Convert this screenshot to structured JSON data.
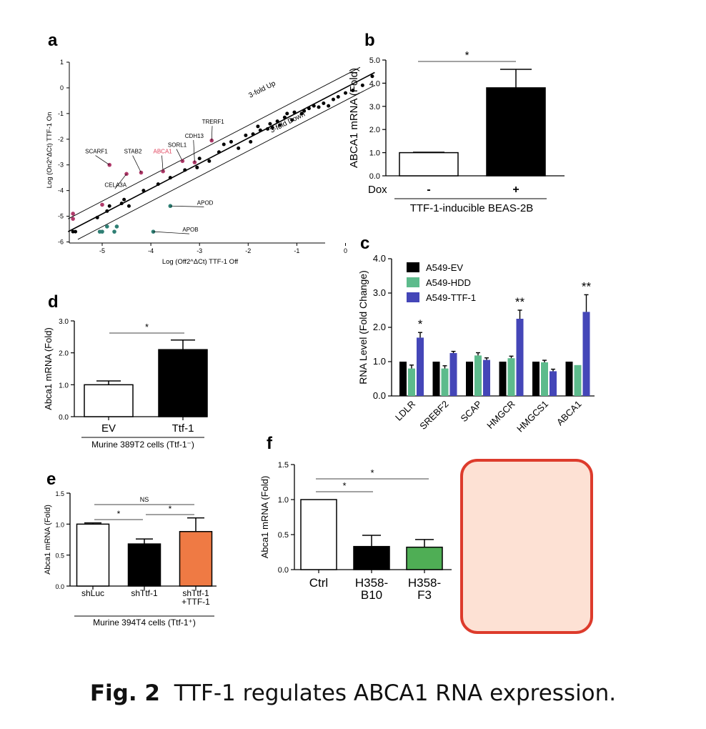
{
  "caption": {
    "label": "Fig. 2",
    "text": "TTF-1 regulates ABCA1 RNA expression."
  },
  "colors": {
    "magenta": "#b03a6a",
    "teal": "#2f7f74",
    "black": "#000000",
    "green_c": "#5dbb8c",
    "blue_c": "#4446b8",
    "orange_e": "#ef7a44",
    "green_f": "#4fae55",
    "red_label": "#e0405a",
    "placeholder_fill": "#fde1d4",
    "placeholder_border": "#dd3b2c"
  },
  "chart_data": [
    {
      "panel": "a",
      "type": "scatter",
      "xlabel": "Log (Off2^ΔCt) TTF-1 Off",
      "ylabel": "Log (On2^ΔCt) TTF-1 On",
      "xlim": [
        -5.9,
        0.6
      ],
      "ylim": [
        -6,
        1
      ],
      "xticks": [
        "-5",
        "-4",
        "-3",
        "-2",
        "-1",
        "0"
      ],
      "yticks": [
        "1",
        "0",
        "-1",
        "-2",
        "-3",
        "-4",
        "-5",
        "-6"
      ],
      "lines": [
        {
          "label": "3-fold Up",
          "from": [
            -5.7,
            -5.1
          ],
          "to": [
            0.3,
            0.8
          ]
        },
        {
          "label": "",
          "from": [
            -5.7,
            -5.6
          ],
          "to": [
            0.6,
            0.6
          ]
        },
        {
          "label": "3-fold Down",
          "from": [
            -5.5,
            -5.9
          ],
          "to": [
            0.6,
            0.1
          ]
        }
      ],
      "annotations": [
        {
          "text": "SCARF1",
          "color": "#000000",
          "x": -5.35,
          "y": -2.55,
          "point": [
            -4.85,
            -3.0
          ]
        },
        {
          "text": "STAB2",
          "color": "#000000",
          "x": -4.55,
          "y": -2.55,
          "point": [
            -4.2,
            -3.3
          ]
        },
        {
          "text": "ABCA1",
          "color": "#e0405a",
          "x": -3.95,
          "y": -2.55,
          "point": [
            -3.75,
            -3.25
          ]
        },
        {
          "text": "SORL1",
          "color": "#000000",
          "x": -3.65,
          "y": -2.3,
          "point": [
            -3.35,
            -2.85
          ]
        },
        {
          "text": "CDH13",
          "color": "#000000",
          "x": -3.3,
          "y": -1.95,
          "point": [
            -3.1,
            -2.9
          ]
        },
        {
          "text": "TRERF1",
          "color": "#000000",
          "x": -2.95,
          "y": -1.4,
          "point": [
            -2.75,
            -2.05
          ]
        },
        {
          "text": "CELA3A",
          "color": "#000000",
          "x": -4.95,
          "y": -3.85,
          "point": [
            -4.5,
            -3.35
          ]
        },
        {
          "text": "APOD",
          "color": "#000000",
          "x": -3.05,
          "y": -4.55,
          "point": [
            -3.6,
            -4.6
          ]
        },
        {
          "text": "APOB",
          "color": "#000000",
          "x": -3.35,
          "y": -5.6,
          "point": [
            -3.95,
            -5.6
          ]
        }
      ],
      "points_up": [
        [
          -5.6,
          -5.1
        ],
        [
          -5.6,
          -4.9
        ],
        [
          -5.0,
          -4.55
        ],
        [
          -4.85,
          -3.0
        ],
        [
          -4.5,
          -3.35
        ],
        [
          -4.2,
          -3.3
        ],
        [
          -3.75,
          -3.25
        ],
        [
          -3.35,
          -2.85
        ],
        [
          -3.1,
          -2.9
        ],
        [
          -2.75,
          -2.05
        ]
      ],
      "points_down": [
        [
          -5.0,
          -5.6
        ],
        [
          -5.05,
          -5.6
        ],
        [
          -4.9,
          -5.4
        ],
        [
          -4.7,
          -5.4
        ],
        [
          -4.75,
          -5.6
        ],
        [
          -3.95,
          -5.6
        ],
        [
          -3.6,
          -4.6
        ]
      ],
      "points_mid": [
        [
          -5.6,
          -5.6
        ],
        [
          -5.55,
          -5.6
        ],
        [
          -5.1,
          -5.05
        ],
        [
          -4.9,
          -4.8
        ],
        [
          -4.85,
          -4.6
        ],
        [
          -4.6,
          -4.5
        ],
        [
          -4.55,
          -4.35
        ],
        [
          -4.45,
          -4.6
        ],
        [
          -4.15,
          -4.0
        ],
        [
          -3.85,
          -3.75
        ],
        [
          -3.6,
          -3.5
        ],
        [
          -3.3,
          -3.2
        ],
        [
          -3.05,
          -3.1
        ],
        [
          -3.0,
          -2.75
        ],
        [
          -2.8,
          -2.85
        ],
        [
          -2.6,
          -2.5
        ],
        [
          -2.5,
          -2.2
        ],
        [
          -2.35,
          -2.1
        ],
        [
          -2.2,
          -2.35
        ],
        [
          -2.05,
          -1.85
        ],
        [
          -1.95,
          -2.1
        ],
        [
          -1.9,
          -1.8
        ],
        [
          -1.8,
          -1.5
        ],
        [
          -1.75,
          -1.65
        ],
        [
          -1.6,
          -1.6
        ],
        [
          -1.55,
          -1.4
        ],
        [
          -1.5,
          -1.55
        ],
        [
          -1.4,
          -1.3
        ],
        [
          -1.35,
          -1.45
        ],
        [
          -1.25,
          -1.15
        ],
        [
          -1.2,
          -1.0
        ],
        [
          -1.1,
          -1.25
        ],
        [
          -1.05,
          -0.95
        ],
        [
          -0.9,
          -1.0
        ],
        [
          -0.85,
          -0.9
        ],
        [
          -0.75,
          -0.8
        ],
        [
          -0.65,
          -0.7
        ],
        [
          -0.55,
          -0.75
        ],
        [
          -0.45,
          -0.6
        ],
        [
          -0.35,
          -0.7
        ],
        [
          -0.25,
          -0.45
        ],
        [
          -0.15,
          -0.35
        ],
        [
          0.0,
          -0.2
        ],
        [
          0.15,
          -0.1
        ],
        [
          0.35,
          0.1
        ],
        [
          0.55,
          0.45
        ]
      ]
    },
    {
      "panel": "b",
      "type": "bar",
      "ylabel": "ABCA1 mRNA (Fold)",
      "ylim": [
        0,
        5
      ],
      "yticks": [
        "0.0",
        "1.0",
        "2.0",
        "3.0",
        "4.0",
        "5.0"
      ],
      "factor_label": "Dox",
      "categories": [
        "-",
        "+"
      ],
      "values": [
        1.0,
        3.8
      ],
      "errors": [
        0.02,
        0.8
      ],
      "bar_colors": [
        "#ffffff",
        "#000000"
      ],
      "group_label": "TTF-1-inducible BEAS-2B",
      "significance": [
        {
          "from": 0,
          "to": 1,
          "label": "*"
        }
      ]
    },
    {
      "panel": "c",
      "type": "bar",
      "ylabel": "RNA Level (Fold Change)",
      "ylim": [
        0,
        4
      ],
      "yticks": [
        "0.0",
        "1.0",
        "2.0",
        "3.0",
        "4.0"
      ],
      "categories": [
        "LDLR",
        "SREBF2",
        "SCAP",
        "HMGCR",
        "HMGCS1",
        "ABCA1"
      ],
      "series": [
        {
          "name": "A549-EV",
          "color": "#000000",
          "values": [
            1.0,
            1.0,
            1.0,
            1.0,
            1.0,
            1.0
          ],
          "errors": [
            0.02,
            0.02,
            0.02,
            0.02,
            0.02,
            0.02
          ]
        },
        {
          "name": "A549-HDD",
          "color": "#5dbb8c",
          "values": [
            0.8,
            0.8,
            1.18,
            1.1,
            0.98,
            0.9
          ],
          "errors": [
            0.1,
            0.08,
            0.08,
            0.06,
            0.06,
            0.03
          ]
        },
        {
          "name": "A549-TTF-1",
          "color": "#4446b8",
          "values": [
            1.7,
            1.25,
            1.05,
            2.25,
            0.72,
            2.45
          ],
          "errors": [
            0.15,
            0.05,
            0.06,
            0.25,
            0.06,
            0.5
          ]
        }
      ],
      "significance_labels": [
        "*",
        "",
        "",
        "**",
        "",
        "**"
      ]
    },
    {
      "panel": "d",
      "type": "bar",
      "ylabel": "Abca1 mRNA (Fold)",
      "ylim": [
        0,
        3
      ],
      "yticks": [
        "0.0",
        "1.0",
        "2.0",
        "3.0"
      ],
      "categories": [
        "EV",
        "Ttf-1"
      ],
      "values": [
        1.0,
        2.1
      ],
      "errors": [
        0.12,
        0.3
      ],
      "bar_colors": [
        "#ffffff",
        "#000000"
      ],
      "group_label": "Murine 389T2 cells (Ttf-1⁻)",
      "significance": [
        {
          "from": 0,
          "to": 1,
          "label": "*"
        }
      ]
    },
    {
      "panel": "e",
      "type": "bar",
      "ylabel": "Abca1 mRNA (Fold)",
      "ylim": [
        0,
        1.5
      ],
      "yticks": [
        "0.0",
        "0.5",
        "1.0",
        "1.5"
      ],
      "categories": [
        "shLuc",
        "shTtf-1",
        "shTtf-1\n+TTF-1"
      ],
      "values": [
        1.0,
        0.68,
        0.88
      ],
      "errors": [
        0.02,
        0.08,
        0.22
      ],
      "bar_colors": [
        "#ffffff",
        "#000000",
        "#ef7a44"
      ],
      "group_label": "Murine 394T4 cells (Ttf-1⁺)",
      "significance": [
        {
          "from": 0,
          "to": 2,
          "label": "NS"
        },
        {
          "from": 0,
          "to": 1,
          "label": "*"
        },
        {
          "from": 1,
          "to": 2,
          "label": "*"
        }
      ]
    },
    {
      "panel": "f",
      "type": "bar",
      "ylabel": "Abca1 mRNA (Fold)",
      "ylim": [
        0,
        1.5
      ],
      "yticks": [
        "0.0",
        "0.5",
        "1.0",
        "1.5"
      ],
      "categories": [
        "Ctrl",
        "H358-\nB10",
        "H358-\nF3"
      ],
      "values": [
        1.0,
        0.33,
        0.32
      ],
      "errors": [
        0.0,
        0.16,
        0.11
      ],
      "bar_colors": [
        "#ffffff",
        "#000000",
        "#4fae55"
      ],
      "significance": [
        {
          "from": 0,
          "to": 2,
          "label": "*"
        },
        {
          "from": 0,
          "to": 1,
          "label": "*"
        }
      ]
    }
  ]
}
